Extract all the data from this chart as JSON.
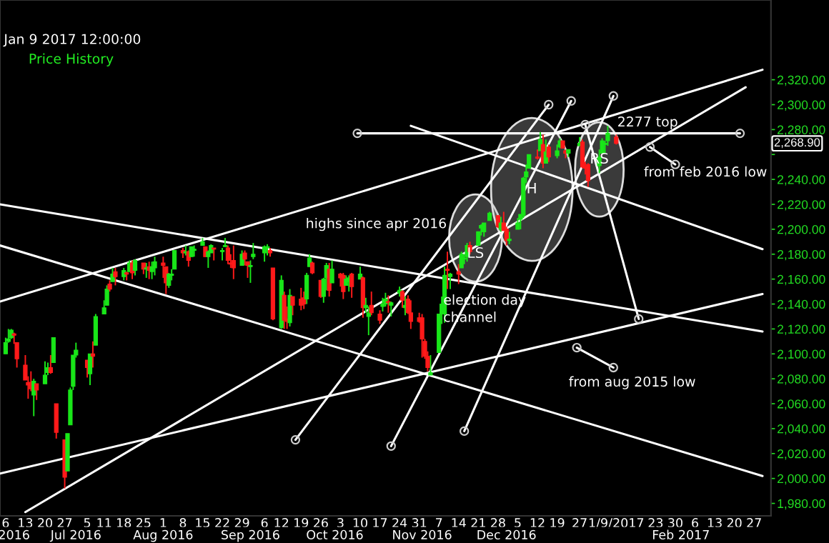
{
  "chart_data": {
    "type": "candlestick",
    "annotations": [
      "Jan 9 2017 12:00:00",
      "Price History",
      {
        "text": "LS",
        "x": "2016-11-20",
        "y": 2193
      },
      {
        "text": "H",
        "x": "2016-12-10",
        "y": 2232
      },
      {
        "text": "RS",
        "x": "2017-01-03",
        "y": 2248
      },
      "highs since apr 2016",
      "election day\nchannel",
      "2277 top",
      "from feb 2016 low",
      "from aug 2015 low",
      "2,268.90"
    ],
    "colors": [
      "#19e619",
      "#19e619",
      "#19e619",
      "#ff1a1a",
      "#ff1a1a",
      "#ff1a1a",
      "#ff1a1a",
      "#ff1a1a",
      "#19e619",
      "#ff1a1a",
      "#19e619",
      "#19e619",
      "#ff1a1a",
      "#19e619",
      "#ff1a1a",
      "#ff1a1a",
      "#19e619",
      "#19e619",
      "#19e619",
      "#19e619",
      "#ff1a1a",
      "#19e619",
      "#ff1a1a",
      "#19e619",
      "#19e619",
      "#19e619",
      "#ff1a1a",
      "#19e619",
      "#ff1a1a",
      "#19e619",
      "#ff1a1a",
      "#19e619",
      "#ff1a1a",
      "#19e619",
      "#ff1a1a",
      "#19e619",
      "#ff1a1a",
      "#19e619",
      "#19e619",
      "#ff1a1a",
      "#ff1a1a",
      "#19e619",
      "#19e619",
      "#19e619",
      "#ff1a1a",
      "#19e619",
      "#ff1a1a",
      "#19e619",
      "#19e619",
      "#19e619",
      "#ff1a1a",
      "#19e619",
      "#19e619",
      "#ff1a1a",
      "#19e619",
      "#19e619",
      "#ff1a1a",
      "#ff1a1a",
      "#ff1a1a",
      "#19e619",
      "#ff1a1a",
      "#ff1a1a",
      "#19e619",
      "#19e619",
      "#19e619",
      "#19e619",
      "#ff1a1a",
      "#ff1a1a",
      "#19e619",
      "#ff1a1a",
      "#ff1a1a",
      "#19e619",
      "#ff1a1a",
      "#ff1a1a",
      "#ff1a1a",
      "#19e619",
      "#19e619",
      "#ff1a1a",
      "#ff1a1a",
      "#19e619",
      "#19e619",
      "#ff1a1a",
      "#19e619",
      "#ff1a1a",
      "#ff1a1a",
      "#19e619",
      "#19e619",
      "#ff1a1a",
      "#19e619",
      "#ff1a1a",
      "#19e619",
      "#19e619",
      "#ff1a1a",
      "#ff1a1a",
      "#19e619",
      "#19e619",
      "#ff1a1a",
      "#19e619",
      "#19e619",
      "#ff1a1a",
      "#19e619",
      "#ff1a1a",
      "#ff1a1a",
      "#ff1a1a",
      "#ff1a1a",
      "#ff1a1a",
      "#ff1a1a",
      "#19e619",
      "#19e619",
      "#19e619",
      "#19e619",
      "#ff1a1a",
      "#19e619",
      "#ff1a1a",
      "#19e619",
      "#19e619",
      "#19e619",
      "#ff1a1a",
      "#19e619",
      "#19e619",
      "#19e619",
      "#19e619",
      "#ff1a1a",
      "#19e619",
      "#ff1a1a",
      "#ff1a1a",
      "#19e619",
      "#19e619",
      "#19e619",
      "#19e619",
      "#19e619",
      "#19e619",
      "#ff1a1a",
      "#19e619",
      "#ff1a1a",
      "#19e619",
      "#ff1a1a",
      "#19e619",
      "#19e619",
      "#ff1a1a",
      "#ff1a1a",
      "#19e619",
      "#19e619",
      "#ff1a1a",
      "#ff1a1a",
      "#ff1a1a",
      "#19e619",
      "#19e619",
      "#19e619",
      "#19e619",
      "#ff1a1a"
    ],
    "x": [
      "2016-06-06",
      "2016-06-07",
      "2016-06-08",
      "2016-06-09",
      "2016-06-10",
      "2016-06-13",
      "2016-06-14",
      "2016-06-15",
      "2016-06-16",
      "2016-06-17",
      "2016-06-20",
      "2016-06-21",
      "2016-06-22",
      "2016-06-23",
      "2016-06-24",
      "2016-06-27",
      "2016-06-28",
      "2016-06-29",
      "2016-06-30",
      "2016-07-01",
      "2016-07-05",
      "2016-07-06",
      "2016-07-07",
      "2016-07-08",
      "2016-07-11",
      "2016-07-12",
      "2016-07-13",
      "2016-07-14",
      "2016-07-15",
      "2016-07-18",
      "2016-07-19",
      "2016-07-20",
      "2016-07-21",
      "2016-07-22",
      "2016-07-25",
      "2016-07-26",
      "2016-07-27",
      "2016-07-28",
      "2016-07-29",
      "2016-08-01",
      "2016-08-02",
      "2016-08-03",
      "2016-08-04",
      "2016-08-05",
      "2016-08-08",
      "2016-08-09",
      "2016-08-10",
      "2016-08-11",
      "2016-08-12",
      "2016-08-15",
      "2016-08-16",
      "2016-08-17",
      "2016-08-18",
      "2016-08-19",
      "2016-08-22",
      "2016-08-23",
      "2016-08-24",
      "2016-08-25",
      "2016-08-26",
      "2016-08-29",
      "2016-08-30",
      "2016-08-31",
      "2016-09-01",
      "2016-09-02",
      "2016-09-06",
      "2016-09-07",
      "2016-09-08",
      "2016-09-09",
      "2016-09-12",
      "2016-09-13",
      "2016-09-14",
      "2016-09-15",
      "2016-09-16",
      "2016-09-19",
      "2016-09-20",
      "2016-09-21",
      "2016-09-22",
      "2016-09-23",
      "2016-09-26",
      "2016-09-27",
      "2016-09-28",
      "2016-09-29",
      "2016-09-30",
      "2016-10-03",
      "2016-10-04",
      "2016-10-05",
      "2016-10-06",
      "2016-10-07",
      "2016-10-10",
      "2016-10-11",
      "2016-10-12",
      "2016-10-13",
      "2016-10-14",
      "2016-10-17",
      "2016-10-18",
      "2016-10-19",
      "2016-10-20",
      "2016-10-21",
      "2016-10-24",
      "2016-10-25",
      "2016-10-26",
      "2016-10-27",
      "2016-10-28",
      "2016-10-31",
      "2016-11-01",
      "2016-11-02",
      "2016-11-03",
      "2016-11-04",
      "2016-11-07",
      "2016-11-08",
      "2016-11-09",
      "2016-11-10",
      "2016-11-11",
      "2016-11-14",
      "2016-11-15",
      "2016-11-16",
      "2016-11-17",
      "2016-11-18",
      "2016-11-21",
      "2016-11-22",
      "2016-11-23",
      "2016-11-25",
      "2016-11-28",
      "2016-11-29",
      "2016-11-30",
      "2016-12-01",
      "2016-12-02",
      "2016-12-05",
      "2016-12-06",
      "2016-12-07",
      "2016-12-08",
      "2016-12-09",
      "2016-12-12",
      "2016-12-13",
      "2016-12-14",
      "2016-12-15",
      "2016-12-16",
      "2016-12-19",
      "2016-12-20",
      "2016-12-21",
      "2016-12-22",
      "2016-12-23",
      "2016-12-27",
      "2016-12-28",
      "2016-12-29",
      "2016-12-30",
      "2017-01-03",
      "2017-01-04",
      "2017-01-05",
      "2017-01-06",
      "2017-01-09"
    ],
    "ohlc": [
      [
        2100,
        2113,
        2100,
        2109
      ],
      [
        2110,
        2120,
        2109,
        2112
      ],
      [
        2113,
        2120,
        2112,
        2119
      ],
      [
        2116,
        2117,
        2108,
        2115
      ],
      [
        2109,
        2109,
        2089,
        2096
      ],
      [
        2091,
        2099,
        2079,
        2079
      ],
      [
        2077,
        2082,
        2064,
        2075
      ],
      [
        2077,
        2086,
        2070,
        2072
      ],
      [
        2067,
        2080,
        2050,
        2078
      ],
      [
        2076,
        2076,
        2063,
        2071
      ],
      [
        2076,
        2094,
        2076,
        2083
      ],
      [
        2085,
        2093,
        2083,
        2089
      ],
      [
        2089,
        2099,
        2084,
        2085
      ],
      [
        2093,
        2113,
        2093,
        2113
      ],
      [
        2060,
        2060,
        2032,
        2037
      ],
      [
        2031,
        2031,
        1992,
        2001
      ],
      [
        2006,
        2036,
        2006,
        2036
      ],
      [
        2043,
        2073,
        2043,
        2071
      ],
      [
        2074,
        2099,
        2071,
        2099
      ],
      [
        2099,
        2109,
        2097,
        2103
      ],
      [
        2095,
        2095,
        2081,
        2089
      ],
      [
        2084,
        2100,
        2075,
        2100
      ],
      [
        2100,
        2110,
        2089,
        2098
      ],
      [
        2107,
        2132,
        2107,
        2130
      ],
      [
        2132,
        2143,
        2132,
        2137
      ],
      [
        2139,
        2155,
        2139,
        2152
      ],
      [
        2156,
        2159,
        2150,
        2152
      ],
      [
        2158,
        2169,
        2158,
        2164
      ],
      [
        2166,
        2169,
        2155,
        2162
      ],
      [
        2162,
        2169,
        2159,
        2167
      ],
      [
        2165,
        2166,
        2159,
        2164
      ],
      [
        2166,
        2175,
        2166,
        2173
      ],
      [
        2173,
        2175,
        2160,
        2165
      ],
      [
        2167,
        2176,
        2163,
        2175
      ],
      [
        2173,
        2173,
        2164,
        2168
      ],
      [
        2168,
        2173,
        2161,
        2169
      ],
      [
        2170,
        2174,
        2160,
        2167
      ],
      [
        2166,
        2174,
        2160,
        2170
      ],
      [
        2169,
        2178,
        2163,
        2174
      ],
      [
        2173,
        2178,
        2161,
        2171
      ],
      [
        2170,
        2170,
        2148,
        2157
      ],
      [
        2155,
        2165,
        2153,
        2164
      ],
      [
        2163,
        2168,
        2159,
        2164
      ],
      [
        2168,
        2183,
        2168,
        2183
      ],
      [
        2183,
        2185,
        2177,
        2181
      ],
      [
        2181,
        2187,
        2179,
        2182
      ],
      [
        2182,
        2183,
        2170,
        2175
      ],
      [
        2178,
        2186,
        2178,
        2186
      ],
      [
        2183,
        2187,
        2178,
        2184
      ],
      [
        2187,
        2193,
        2187,
        2190
      ],
      [
        2186,
        2186,
        2178,
        2178
      ],
      [
        2178,
        2183,
        2169,
        2182
      ],
      [
        2181,
        2188,
        2181,
        2187
      ],
      [
        2185,
        2185,
        2175,
        2184
      ],
      [
        2182,
        2185,
        2175,
        2183
      ],
      [
        2186,
        2193,
        2186,
        2187
      ],
      [
        2185,
        2187,
        2172,
        2175
      ],
      [
        2173,
        2180,
        2169,
        2172
      ],
      [
        2175,
        2187,
        2160,
        2169
      ],
      [
        2171,
        2183,
        2171,
        2180
      ],
      [
        2181,
        2183,
        2171,
        2176
      ],
      [
        2174,
        2174,
        2161,
        2171
      ],
      [
        2170,
        2175,
        2157,
        2171
      ],
      [
        2178,
        2189,
        2176,
        2180
      ],
      [
        2181,
        2187,
        2174,
        2186
      ],
      [
        2185,
        2188,
        2179,
        2186
      ],
      [
        2183,
        2185,
        2178,
        2181
      ],
      [
        2169,
        2169,
        2127,
        2128
      ],
      [
        2121,
        2163,
        2120,
        2159
      ],
      [
        2147,
        2150,
        2120,
        2127
      ],
      [
        2128,
        2138,
        2120,
        2126
      ],
      [
        2125,
        2152,
        2122,
        2147
      ],
      [
        2146,
        2146,
        2131,
        2139
      ],
      [
        2144,
        2153,
        2135,
        2139
      ],
      [
        2145,
        2150,
        2136,
        2140
      ],
      [
        2144,
        2165,
        2140,
        2163
      ],
      [
        2170,
        2180,
        2170,
        2177
      ],
      [
        2173,
        2174,
        2164,
        2165
      ],
      [
        2159,
        2159,
        2145,
        2146
      ],
      [
        2146,
        2161,
        2141,
        2160
      ],
      [
        2161,
        2173,
        2151,
        2171
      ],
      [
        2168,
        2173,
        2146,
        2151
      ],
      [
        2157,
        2175,
        2157,
        2168
      ],
      [
        2164,
        2165,
        2154,
        2161
      ],
      [
        2163,
        2165,
        2144,
        2150
      ],
      [
        2155,
        2163,
        2155,
        2160
      ],
      [
        2158,
        2163,
        2150,
        2161
      ],
      [
        2164,
        2165,
        2145,
        2154
      ],
      [
        2160,
        2170,
        2160,
        2164
      ],
      [
        2161,
        2162,
        2129,
        2137
      ],
      [
        2137,
        2145,
        2133,
        2139
      ],
      [
        2130,
        2138,
        2115,
        2133
      ],
      [
        2139,
        2150,
        2131,
        2133
      ],
      [
        2132,
        2135,
        2124,
        2127
      ],
      [
        2138,
        2145,
        2134,
        2140
      ],
      [
        2140,
        2149,
        2138,
        2144
      ],
      [
        2142,
        2147,
        2133,
        2141
      ],
      [
        2139,
        2142,
        2130,
        2141
      ],
      [
        2149,
        2154,
        2146,
        2151
      ],
      [
        2150,
        2151,
        2137,
        2143
      ],
      [
        2137,
        2146,
        2131,
        2139
      ],
      [
        2144,
        2147,
        2132,
        2133
      ],
      [
        2133,
        2143,
        2120,
        2126
      ],
      [
        2129,
        2133,
        2125,
        2126
      ],
      [
        2129,
        2132,
        2097,
        2112
      ],
      [
        2110,
        2112,
        2096,
        2098
      ],
      [
        2098,
        2102,
        2086,
        2089
      ],
      [
        2083,
        2099,
        2083,
        2085
      ],
      [
        2101,
        2132,
        2101,
        2132
      ],
      [
        2132,
        2146,
        2124,
        2140
      ],
      [
        2132,
        2170,
        2125,
        2163
      ],
      [
        2168,
        2182,
        2152,
        2167
      ],
      [
        2162,
        2165,
        2152,
        2164
      ],
      [
        2166,
        2172,
        2156,
        2164
      ],
      [
        2169,
        2182,
        2169,
        2180
      ],
      [
        2176,
        2180,
        2172,
        2177
      ],
      [
        2178,
        2189,
        2174,
        2187
      ],
      [
        2187,
        2190,
        2180,
        2182
      ],
      [
        2187,
        2198,
        2187,
        2198
      ],
      [
        2201,
        2204,
        2195,
        2203
      ],
      [
        2198,
        2205,
        2194,
        2205
      ],
      [
        2207,
        2214,
        2207,
        2213
      ],
      [
        2211,
        2211,
        2201,
        2202
      ],
      [
        2200,
        2210,
        2198,
        2205
      ],
      [
        2205,
        2214,
        2199,
        2199
      ],
      [
        2200,
        2202,
        2187,
        2191
      ],
      [
        2191,
        2198,
        2188,
        2192
      ],
      [
        2200,
        2209,
        2200,
        2205
      ],
      [
        2208,
        2212,
        2200,
        2212
      ],
      [
        2211,
        2242,
        2209,
        2241
      ],
      [
        2242,
        2252,
        2237,
        2246
      ],
      [
        2249,
        2260,
        2249,
        2260
      ],
      [
        2258,
        2264,
        2256,
        2257
      ],
      [
        2263,
        2278,
        2263,
        2272
      ],
      [
        2268,
        2276,
        2249,
        2253
      ],
      [
        2253,
        2272,
        2253,
        2262
      ],
      [
        2266,
        2268,
        2254,
        2258
      ],
      [
        2259,
        2268,
        2257,
        2263
      ],
      [
        2266,
        2273,
        2265,
        2271
      ],
      [
        2271,
        2271,
        2265,
        2265
      ],
      [
        2263,
        2264,
        2257,
        2261
      ],
      [
        2261,
        2264,
        2258,
        2264
      ],
      [
        2267,
        2274,
        2267,
        2269
      ],
      [
        2270,
        2272,
        2249,
        2250
      ],
      [
        2250,
        2254,
        2244,
        2249
      ],
      [
        2252,
        2253,
        2234,
        2239
      ],
      [
        2251,
        2264,
        2245,
        2258
      ],
      [
        2261,
        2273,
        2261,
        2271
      ],
      [
        2268,
        2271,
        2261,
        2269
      ],
      [
        2271,
        2283,
        2267,
        2277
      ],
      [
        2274,
        2276,
        2268,
        2268.9
      ]
    ],
    "series": [
      {
        "type": "line",
        "color": "#ffffff",
        "x": [
          "2016-06-04",
          "2017-03-02"
        ],
        "values": [
          2220,
          2118
        ]
      },
      {
        "type": "line",
        "color": "#ffffff",
        "x": [
          "2016-06-04",
          "2017-03-02"
        ],
        "values": [
          2187,
          2002
        ]
      },
      {
        "type": "line",
        "color": "#ffffff",
        "x": [
          "2016-06-04",
          "2017-03-02"
        ],
        "values": [
          2142,
          2328
        ]
      },
      {
        "type": "line",
        "color": "#ffffff",
        "x": [
          "2016-06-04",
          "2017-03-02"
        ],
        "values": [
          2004,
          2148
        ]
      },
      {
        "type": "line",
        "color": "#ffffff",
        "x": [
          "2016-06-13",
          "2017-02-24"
        ],
        "values": [
          1973,
          2314
        ]
      },
      {
        "type": "line",
        "color": "#ffffff",
        "x": [
          "2016-10-28",
          "2017-03-02"
        ],
        "values": [
          2283,
          2184
        ]
      },
      {
        "type": "line",
        "color": "#ffffff",
        "marker": "circle",
        "x": [
          "2016-09-17",
          "2016-12-16"
        ],
        "values": [
          2031,
          2300
        ]
      },
      {
        "type": "line",
        "color": "#ffffff",
        "marker": "circle",
        "x": [
          "2016-10-21",
          "2016-12-24"
        ],
        "values": [
          2026,
          2303
        ]
      },
      {
        "type": "line",
        "color": "#ffffff",
        "marker": "circle",
        "x": [
          "2016-11-16",
          "2017-01-08"
        ],
        "values": [
          2038,
          2307
        ]
      },
      {
        "type": "line",
        "color": "#ffffff",
        "marker": "circle",
        "x": [
          "2016-12-29",
          "2017-01-17"
        ],
        "values": [
          2284,
          2128
        ]
      },
      {
        "type": "line",
        "color": "#ffffff",
        "marker": "circle",
        "x": [
          "2016-10-09",
          "2017-02-22"
        ],
        "values": [
          2277,
          2277
        ]
      },
      {
        "type": "line",
        "color": "#ffffff",
        "marker": "circle",
        "x": [
          "2017-01-21",
          "2017-01-30"
        ],
        "values": [
          2266,
          2252
        ]
      },
      {
        "type": "line",
        "color": "#ffffff",
        "marker": "circle",
        "x": [
          "2016-12-26",
          "2017-01-08"
        ],
        "values": [
          2105,
          2089
        ]
      }
    ],
    "xlim": [
      "2016-06-04",
      "2017-03-05"
    ],
    "xticks": [
      {
        "value": "2016-06-06",
        "label": "6"
      },
      {
        "value": "2016-06-13",
        "label": "13"
      },
      {
        "value": "2016-06-20",
        "label": "20"
      },
      {
        "value": "2016-06-27",
        "label": "27"
      },
      {
        "value": "2016-07-05",
        "label": "5"
      },
      {
        "value": "2016-07-11",
        "label": "11"
      },
      {
        "value": "2016-07-18",
        "label": "18"
      },
      {
        "value": "2016-07-25",
        "label": "25"
      },
      {
        "value": "2016-08-01",
        "label": "1"
      },
      {
        "value": "2016-08-08",
        "label": "8"
      },
      {
        "value": "2016-08-15",
        "label": "15"
      },
      {
        "value": "2016-08-22",
        "label": "22"
      },
      {
        "value": "2016-08-29",
        "label": "29"
      },
      {
        "value": "2016-09-06",
        "label": "6"
      },
      {
        "value": "2016-09-12",
        "label": "12"
      },
      {
        "value": "2016-09-19",
        "label": "19"
      },
      {
        "value": "2016-09-26",
        "label": "26"
      },
      {
        "value": "2016-10-03",
        "label": "3"
      },
      {
        "value": "2016-10-10",
        "label": "10"
      },
      {
        "value": "2016-10-17",
        "label": "17"
      },
      {
        "value": "2016-10-24",
        "label": "24"
      },
      {
        "value": "2016-10-31",
        "label": "31"
      },
      {
        "value": "2016-11-07",
        "label": "7"
      },
      {
        "value": "2016-11-14",
        "label": "14"
      },
      {
        "value": "2016-11-21",
        "label": "21"
      },
      {
        "value": "2016-11-28",
        "label": "28"
      },
      {
        "value": "2016-12-05",
        "label": "5"
      },
      {
        "value": "2016-12-12",
        "label": "12"
      },
      {
        "value": "2016-12-19",
        "label": "19"
      },
      {
        "value": "2016-12-27",
        "label": "27"
      },
      {
        "value": "2017-01-09",
        "label": "1/9/2017"
      },
      {
        "value": "2017-01-23",
        "label": "23"
      },
      {
        "value": "2017-01-30",
        "label": "30"
      },
      {
        "value": "2017-02-06",
        "label": "6"
      },
      {
        "value": "2017-02-13",
        "label": "13"
      },
      {
        "value": "2017-02-20",
        "label": "20"
      },
      {
        "value": "2017-02-27",
        "label": "27"
      }
    ],
    "x2lim": [
      "2016-06-04",
      "2017-03-05"
    ],
    "x2ticks": [
      {
        "value": "2016-06-09",
        "label": "2016"
      },
      {
        "value": "2016-07-01",
        "label": "Jul 2016"
      },
      {
        "value": "2016-08-01",
        "label": "Aug 2016"
      },
      {
        "value": "2016-09-01",
        "label": "Sep 2016"
      },
      {
        "value": "2016-10-01",
        "label": "Oct 2016"
      },
      {
        "value": "2016-11-01",
        "label": "Nov 2016"
      },
      {
        "value": "2016-12-01",
        "label": "Dec 2016"
      },
      {
        "value": "2017-02-01",
        "label": "Feb 2017"
      }
    ],
    "ylim": [
      1970,
      2384
    ],
    "yticks": [
      {
        "value": 1980,
        "label": "1,980.00"
      },
      {
        "value": 2000,
        "label": "2,000.00"
      },
      {
        "value": 2020,
        "label": "2,020.00"
      },
      {
        "value": 2040,
        "label": "2,040.00"
      },
      {
        "value": 2060,
        "label": "2,060.00"
      },
      {
        "value": 2080,
        "label": "2,080.00"
      },
      {
        "value": 2100,
        "label": "2,100.00"
      },
      {
        "value": 2120,
        "label": "2,120.00"
      },
      {
        "value": 2140,
        "label": "2,140.00"
      },
      {
        "value": 2160,
        "label": "2,160.00"
      },
      {
        "value": 2180,
        "label": "2,180.00"
      },
      {
        "value": 2200,
        "label": "2,200.00"
      },
      {
        "value": 2220,
        "label": "2,220.00"
      },
      {
        "value": 2240,
        "label": "2,240.00"
      },
      {
        "value": 2260,
        "label": null
      },
      {
        "value": 2280,
        "label": "2,280.00"
      },
      {
        "value": 2300,
        "label": "2,300.00"
      },
      {
        "value": 2320,
        "label": "2,320.00"
      }
    ],
    "grid": false,
    "legend": false
  }
}
